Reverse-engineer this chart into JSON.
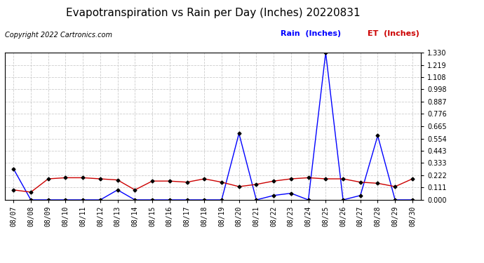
{
  "title": "Evapotranspiration vs Rain per Day (Inches) 20220831",
  "copyright": "Copyright 2022 Cartronics.com",
  "legend_rain": "Rain  (Inches)",
  "legend_et": "ET  (Inches)",
  "x_labels": [
    "08/07",
    "08/08",
    "08/09",
    "08/10",
    "08/11",
    "08/12",
    "08/13",
    "08/14",
    "08/15",
    "08/16",
    "08/17",
    "08/18",
    "08/19",
    "08/20",
    "08/21",
    "08/22",
    "08/23",
    "08/24",
    "08/25",
    "08/26",
    "08/27",
    "08/28",
    "08/29",
    "08/30"
  ],
  "rain_values": [
    0.28,
    0.0,
    0.0,
    0.0,
    0.0,
    0.0,
    0.09,
    0.0,
    0.0,
    0.0,
    0.0,
    0.0,
    0.0,
    0.6,
    0.0,
    0.04,
    0.06,
    0.0,
    1.33,
    0.0,
    0.04,
    0.58,
    0.0,
    0.0
  ],
  "et_values": [
    0.09,
    0.07,
    0.19,
    0.2,
    0.2,
    0.19,
    0.18,
    0.09,
    0.17,
    0.17,
    0.16,
    0.19,
    0.16,
    0.12,
    0.14,
    0.17,
    0.19,
    0.2,
    0.19,
    0.19,
    0.16,
    0.15,
    0.12,
    0.19
  ],
  "rain_color": "#0000ff",
  "et_color": "#cc0000",
  "marker_color": "#000000",
  "ylim": [
    0.0,
    1.33
  ],
  "yticks": [
    0.0,
    0.111,
    0.222,
    0.333,
    0.443,
    0.554,
    0.665,
    0.776,
    0.887,
    0.998,
    1.108,
    1.219,
    1.33
  ],
  "background_color": "#ffffff",
  "grid_color": "#cccccc",
  "title_fontsize": 11,
  "legend_fontsize": 8,
  "tick_fontsize": 7,
  "copyright_fontsize": 7
}
